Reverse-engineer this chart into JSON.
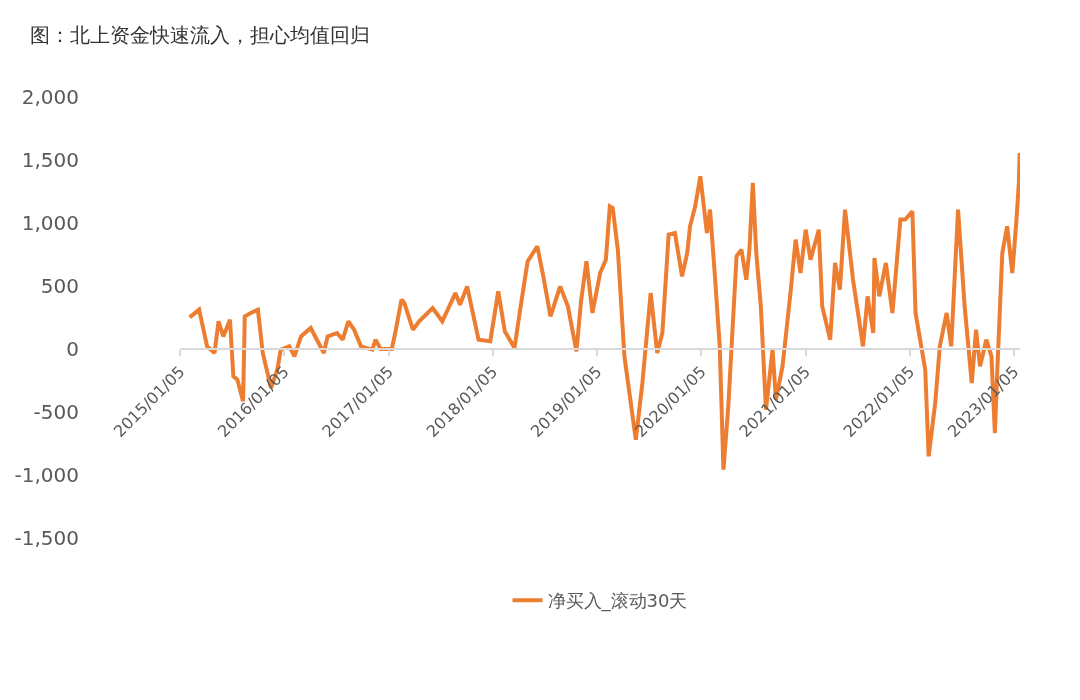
{
  "chart_data": {
    "type": "line",
    "title": "图：北上资金快速流入，担心均值回归",
    "x": [
      "2015-02-08",
      "2015-03-13",
      "2015-04-10",
      "2015-05-06",
      "2015-05-20",
      "2015-06-06",
      "2015-06-29",
      "2015-07-11",
      "2015-07-25",
      "2015-08-14",
      "2015-08-20",
      "2015-09-10",
      "2015-10-05",
      "2015-10-22",
      "2015-11-20",
      "2015-12-12",
      "2015-12-24",
      "2016-01-23",
      "2016-02-10",
      "2016-03-04",
      "2016-04-07",
      "2016-05-23",
      "2016-06-05",
      "2016-07-08",
      "2016-07-28",
      "2016-08-17",
      "2016-09-06",
      "2016-09-30",
      "2016-11-09",
      "2016-11-20",
      "2016-12-08",
      "2017-01-16",
      "2017-01-28",
      "2017-02-19",
      "2017-03-01",
      "2017-03-31",
      "2017-04-22",
      "2017-06-08",
      "2017-07-12",
      "2017-08-27",
      "2017-09-12",
      "2017-10-07",
      "2017-11-16",
      "2017-12-27",
      "2018-01-24",
      "2018-02-16",
      "2018-03-22",
      "2018-04-09",
      "2018-05-07",
      "2018-06-10",
      "2018-07-03",
      "2018-07-26",
      "2018-08-29",
      "2018-09-25",
      "2018-10-25",
      "2018-11-10",
      "2018-11-29",
      "2018-12-20",
      "2019-01-16",
      "2019-02-05",
      "2019-02-19",
      "2019-03-01",
      "2019-03-19",
      "2019-04-11",
      "2019-05-21",
      "2019-06-13",
      "2019-07-12",
      "2019-08-04",
      "2019-08-22",
      "2019-09-13",
      "2019-10-05",
      "2019-10-30",
      "2019-11-17",
      "2019-11-27",
      "2019-12-15",
      "2020-01-02",
      "2020-01-25",
      "2020-02-05",
      "2020-02-23",
      "2020-03-10",
      "2020-03-23",
      "2020-04-09",
      "2020-05-08",
      "2020-05-25",
      "2020-06-11",
      "2020-06-22",
      "2020-07-04",
      "2020-07-16",
      "2020-08-01",
      "2020-08-19",
      "2020-09-11",
      "2020-09-23",
      "2020-10-16",
      "2020-11-14",
      "2020-12-01",
      "2020-12-18",
      "2021-01-05",
      "2021-01-22",
      "2021-02-20",
      "2021-03-04",
      "2021-04-01",
      "2021-04-18",
      "2021-05-05",
      "2021-05-23",
      "2021-06-20",
      "2021-07-25",
      "2021-08-10",
      "2021-08-30",
      "2021-09-03",
      "2021-09-20",
      "2021-10-13",
      "2021-11-05",
      "2021-12-03",
      "2021-12-20",
      "2022-01-14",
      "2022-01-25",
      "2022-02-28",
      "2022-03-12",
      "2022-04-04",
      "2022-04-20",
      "2022-05-14",
      "2022-05-30",
      "2022-06-23",
      "2022-07-16",
      "2022-08-10",
      "2022-08-25",
      "2022-09-08",
      "2022-09-30",
      "2022-10-18",
      "2022-10-30",
      "2022-11-08",
      "2022-11-25",
      "2022-12-12",
      "2022-12-30",
      "2023-01-12",
      "2023-01-22",
      "2023-01-25"
    ],
    "series": [
      {
        "name": "净买入_滚动30天",
        "color": "#ed7d31",
        "values": [
          251,
          312,
          21,
          -32,
          220,
          100,
          233,
          -217,
          -243,
          -415,
          259,
          286,
          312,
          -32,
          -310,
          -164,
          -5,
          21,
          -58,
          100,
          167,
          -32,
          100,
          127,
          74,
          220,
          153,
          21,
          -5,
          74,
          0,
          0,
          127,
          392,
          365,
          153,
          220,
          325,
          220,
          444,
          352,
          497,
          74,
          61,
          458,
          140,
          8,
          286,
          696,
          815,
          550,
          259,
          497,
          339,
          -19,
          378,
          696,
          286,
          603,
          709,
          1132,
          1119,
          789,
          -58,
          -720,
          -270,
          444,
          -32,
          127,
          908,
          921,
          577,
          762,
          974,
          1132,
          1371,
          921,
          1106,
          550,
          21,
          -958,
          -455,
          736,
          789,
          550,
          789,
          1318,
          762,
          339,
          -482,
          -5,
          -402,
          -138,
          471,
          868,
          603,
          947,
          709,
          947,
          339,
          74,
          683,
          471,
          1106,
          550,
          21,
          418,
          127,
          722,
          418,
          683,
          286,
          1027,
          1027,
          1093,
          286,
          -164,
          -852,
          -429,
          21,
          286,
          21,
          1106,
          339,
          -270,
          153,
          -138,
          74,
          -58,
          -667,
          -138,
          762,
          974,
          603,
          974,
          1318,
          1556
        ]
      }
    ],
    "xlim": [
      "2015-01-05",
      "2023-01-26"
    ],
    "xticks": [
      {
        "value": "2015-01-05",
        "label": "2015/01/05"
      },
      {
        "value": "2016-01-05",
        "label": "2016/01/05"
      },
      {
        "value": "2017-01-05",
        "label": "2017/01/05"
      },
      {
        "value": "2018-01-05",
        "label": "2018/01/05"
      },
      {
        "value": "2019-01-05",
        "label": "2019/01/05"
      },
      {
        "value": "2020-01-05",
        "label": "2020/01/05"
      },
      {
        "value": "2021-01-05",
        "label": "2021/01/05"
      },
      {
        "value": "2022-01-05",
        "label": "2022/01/05"
      },
      {
        "value": "2023-01-05",
        "label": "2023/01/05"
      }
    ],
    "ylim": [
      -1500,
      2000
    ],
    "yticks": [
      {
        "value": -1500,
        "label": "-1,500"
      },
      {
        "value": -1000,
        "label": "-1,000"
      },
      {
        "value": -500,
        "label": "-500"
      },
      {
        "value": 0,
        "label": "0"
      },
      {
        "value": 500,
        "label": "500"
      },
      {
        "value": 1000,
        "label": "1,000"
      },
      {
        "value": 1500,
        "label": "1,500"
      },
      {
        "value": 2000,
        "label": "2,000"
      }
    ],
    "legend": "bottom"
  }
}
